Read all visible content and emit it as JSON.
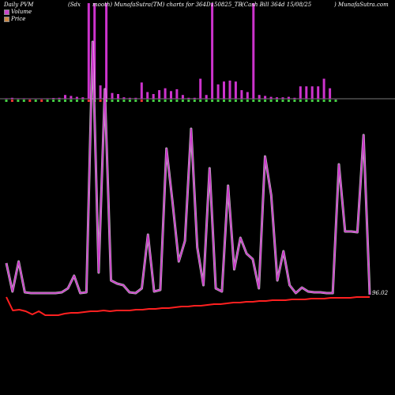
{
  "header": {
    "left": "Daily PVM",
    "seg1": "(Sdx",
    "seg2": "mooth) MunafaSutra(TM) charts for 364D150825_TB",
    "seg3": "(Cash Bill 364d 15/08/25",
    "right": ") MunafaSutra.com"
  },
  "legend": [
    {
      "label": "Volume",
      "color": "#cc44cc"
    },
    {
      "label": "Price",
      "color": "#cc8844"
    }
  ],
  "price_label": "96.02",
  "colors": {
    "volume_bar": "#cc33cc",
    "volume_line": "#cc33cc",
    "volume_line_glow": "#ffffff",
    "price_line": "#ff2020",
    "up_marker": "#44cc44",
    "down_marker": "#ee3333",
    "baseline": "#777777"
  },
  "chart_data": {
    "type": "bar",
    "title": "",
    "xlabel": "",
    "ylabel": "",
    "series": [
      {
        "name": "Volume",
        "values": [
          0.5,
          1,
          0.5,
          0.5,
          0.3,
          0.3,
          0.3,
          0.5,
          0.8,
          1,
          4,
          3,
          2,
          1.5,
          100,
          100,
          14,
          100,
          6,
          5,
          1.5,
          1,
          1,
          17,
          7,
          5,
          9,
          11,
          8,
          10,
          4,
          1,
          1,
          21,
          4,
          100,
          15,
          18,
          19,
          18,
          9,
          7,
          100,
          4,
          3,
          2,
          1.5,
          1.5,
          2,
          1,
          13,
          13,
          13,
          13,
          21,
          11,
          0
        ]
      },
      {
        "name": "Price",
        "values": [
          96.02,
          95.85,
          95.86,
          95.84,
          95.8,
          95.84,
          95.79,
          95.79,
          95.79,
          95.81,
          95.82,
          95.82,
          95.83,
          95.84,
          95.84,
          95.85,
          95.84,
          95.85,
          95.85,
          95.85,
          95.86,
          95.86,
          95.87,
          95.87,
          95.88,
          95.88,
          95.89,
          95.9,
          95.9,
          95.91,
          95.91,
          95.92,
          95.93,
          95.93,
          95.94,
          95.95,
          95.95,
          95.96,
          95.96,
          95.97,
          95.97,
          95.98,
          95.98,
          95.98,
          95.99,
          95.99,
          95.99,
          96.0,
          96.0,
          96.0,
          96.01,
          96.01,
          96.01,
          96.01,
          96.02,
          96.02,
          96.02
        ]
      }
    ],
    "volume_trend": [
      40,
      4,
      42,
      3,
      2,
      2,
      2,
      2,
      2,
      3,
      8,
      24,
      2,
      3,
      320,
      28,
      260,
      18,
      14,
      12,
      3,
      2,
      8,
      76,
      4,
      6,
      185,
      116,
      42,
      68,
      210,
      60,
      12,
      160,
      8,
      4,
      138,
      32,
      72,
      52,
      45,
      8,
      175,
      126,
      18,
      55,
      12,
      2,
      9,
      4,
      3,
      3,
      2,
      2,
      165,
      80,
      80,
      79,
      202,
      0
    ],
    "direction": [
      "up",
      "down",
      "up",
      "up",
      "down",
      "up",
      "down",
      "up",
      "up",
      "up",
      "up",
      "up",
      "up",
      "up",
      "down",
      "up",
      "down",
      "up",
      "up",
      "up",
      "up",
      "up",
      "up",
      "down",
      "up",
      "up",
      "up",
      "up",
      "up",
      "up",
      "up",
      "up",
      "up",
      "up",
      "up",
      "up",
      "up",
      "up",
      "up",
      "up",
      "up",
      "up",
      "up",
      "up",
      "up",
      "up",
      "up",
      "up",
      "up",
      "up",
      "up",
      "up",
      "up",
      "up",
      "up",
      "up",
      "up"
    ]
  }
}
